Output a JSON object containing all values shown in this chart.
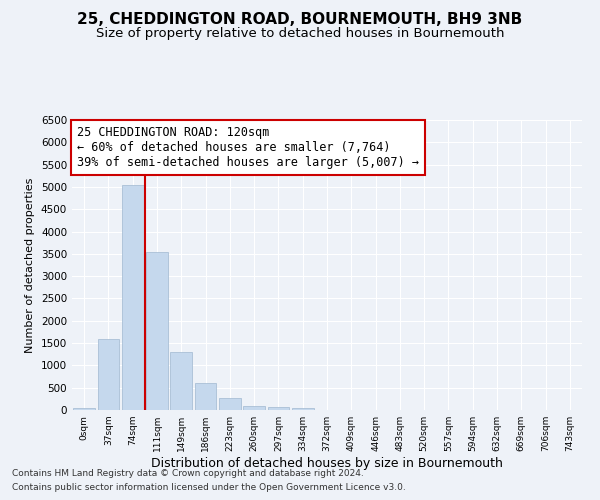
{
  "title": "25, CHEDDINGTON ROAD, BOURNEMOUTH, BH9 3NB",
  "subtitle": "Size of property relative to detached houses in Bournemouth",
  "xlabel": "Distribution of detached houses by size in Bournemouth",
  "ylabel": "Number of detached properties",
  "footer1": "Contains HM Land Registry data © Crown copyright and database right 2024.",
  "footer2": "Contains public sector information licensed under the Open Government Licence v3.0.",
  "bin_labels": [
    "0sqm",
    "37sqm",
    "74sqm",
    "111sqm",
    "149sqm",
    "186sqm",
    "223sqm",
    "260sqm",
    "297sqm",
    "334sqm",
    "372sqm",
    "409sqm",
    "446sqm",
    "483sqm",
    "520sqm",
    "557sqm",
    "594sqm",
    "632sqm",
    "669sqm",
    "706sqm",
    "743sqm"
  ],
  "bar_values": [
    50,
    1600,
    5050,
    3550,
    1300,
    600,
    260,
    100,
    75,
    55,
    10,
    0,
    0,
    0,
    0,
    0,
    0,
    0,
    0,
    0,
    0
  ],
  "bar_color": "#c5d8ed",
  "bar_edge_color": "#a0b8d0",
  "vline_x_index": 3,
  "vline_color": "#cc0000",
  "annotation_line1": "25 CHEDDINGTON ROAD: 120sqm",
  "annotation_line2": "← 60% of detached houses are smaller (7,764)",
  "annotation_line3": "39% of semi-detached houses are larger (5,007) →",
  "ylim": [
    0,
    6500
  ],
  "yticks": [
    0,
    500,
    1000,
    1500,
    2000,
    2500,
    3000,
    3500,
    4000,
    4500,
    5000,
    5500,
    6000,
    6500
  ],
  "background_color": "#eef2f8",
  "plot_bg_color": "#eef2f8",
  "grid_color": "#ffffff",
  "title_fontsize": 11,
  "subtitle_fontsize": 9.5,
  "xlabel_fontsize": 9,
  "ylabel_fontsize": 8,
  "annot_fontsize": 8.5
}
